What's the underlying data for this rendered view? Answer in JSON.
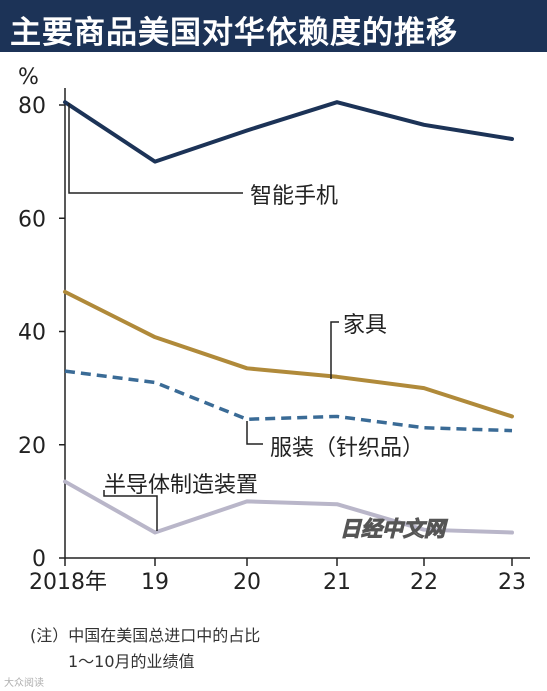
{
  "title": "主要商品美国对华依赖度的推移",
  "chart_data": {
    "type": "line",
    "unit_label": "%",
    "x": [
      "2018年",
      "19",
      "20",
      "21",
      "22",
      "23"
    ],
    "yticks": [
      0,
      20,
      40,
      60,
      80
    ],
    "ylim": [
      0,
      85
    ],
    "grid": false,
    "series": [
      {
        "name": "智能手机",
        "values": [
          80.5,
          70,
          75.5,
          80.5,
          76.5,
          74
        ],
        "color": "#1c3357",
        "style": "solid"
      },
      {
        "name": "家具",
        "values": [
          47,
          39,
          33.5,
          32,
          30,
          25
        ],
        "color": "#b08a3a",
        "style": "solid"
      },
      {
        "name": "服装（针织品）",
        "values": [
          33,
          31,
          24.5,
          25,
          23,
          22.5
        ],
        "color": "#3a6b96",
        "style": "dashed"
      },
      {
        "name": "半导体制造装置",
        "values": [
          13.5,
          4.5,
          10,
          9.5,
          5,
          4.5
        ],
        "color": "#b9b6c9",
        "style": "solid"
      }
    ]
  },
  "watermark": "日经中文网",
  "notes": {
    "line1": "(注）中国在美国总进口中的占比",
    "line2": "1～10月的业绩值"
  },
  "corner_mark": "大众阅读"
}
